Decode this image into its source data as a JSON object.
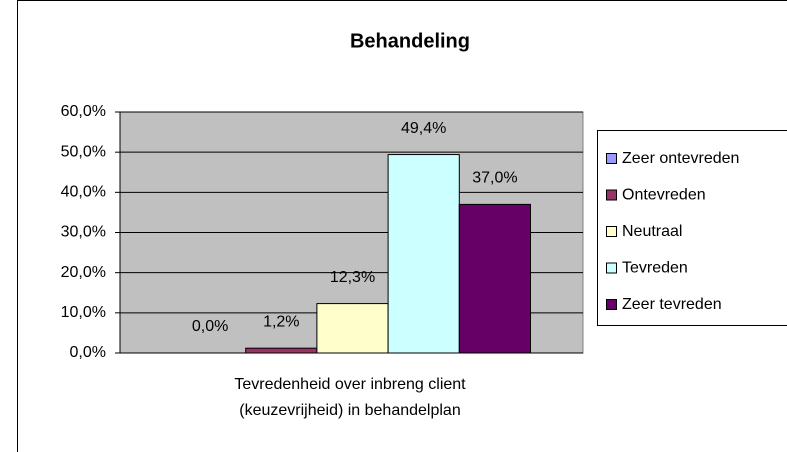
{
  "chart_data": {
    "type": "bar",
    "title": "Behandeling",
    "categories": [
      "Tevredenheid over inbreng client (keuzevrijheid) in behandelplan"
    ],
    "series": [
      {
        "name": "Zeer ontevreden",
        "color": "#9999ff",
        "values": [
          0
        ],
        "value_labels": [
          "0,0%"
        ]
      },
      {
        "name": "Ontevreden",
        "color": "#993366",
        "values": [
          1.2
        ],
        "value_labels": [
          "1,2%"
        ]
      },
      {
        "name": "Neutraal",
        "color": "#ffffcc",
        "values": [
          12.3
        ],
        "value_labels": [
          "12,3%"
        ]
      },
      {
        "name": "Tevreden",
        "color": "#ccffff",
        "values": [
          49.4
        ],
        "value_labels": [
          "49,4%"
        ]
      },
      {
        "name": "Zeer tevreden",
        "color": "#660066",
        "values": [
          37.0
        ],
        "value_labels": [
          "37,0%"
        ]
      }
    ],
    "ylim": [
      0,
      60
    ],
    "yticks": [
      {
        "value": 0,
        "label": "0,0%"
      },
      {
        "value": 10,
        "label": "10,0%"
      },
      {
        "value": 20,
        "label": "20,0%"
      },
      {
        "value": 30,
        "label": "30,0%"
      },
      {
        "value": 40,
        "label": "40,0%"
      },
      {
        "value": 50,
        "label": "50,0%"
      },
      {
        "value": 60,
        "label": "60,0%"
      }
    ],
    "grid": true,
    "legend": "right",
    "plot_background": "#c0c0c0"
  }
}
